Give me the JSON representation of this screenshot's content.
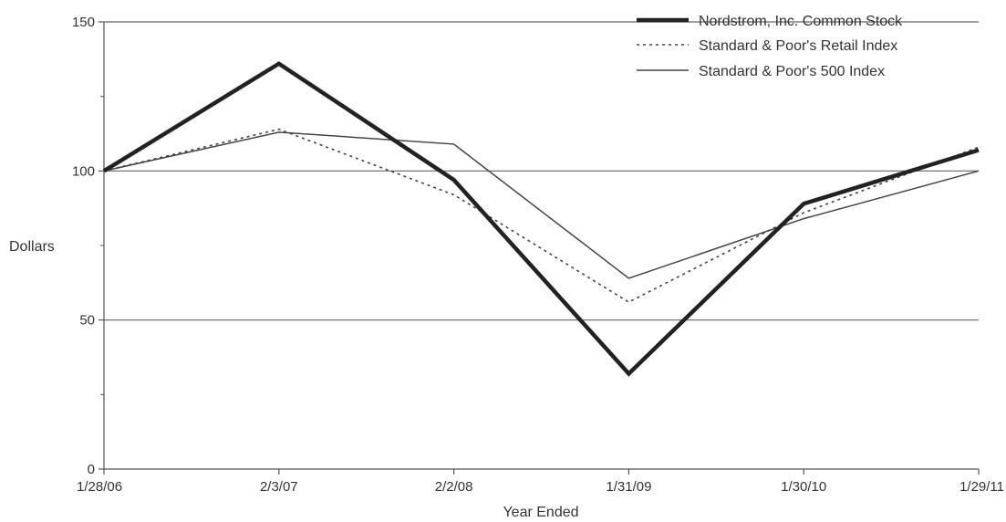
{
  "chart_data": {
    "type": "line",
    "categories": [
      "1/28/06",
      "2/3/07",
      "2/2/08",
      "1/31/09",
      "1/30/10",
      "1/29/11"
    ],
    "series": [
      {
        "name": "Nordstrom, Inc. Common Stock",
        "values": [
          100,
          136,
          97,
          32,
          89,
          107
        ],
        "color": "#222222",
        "style": "thick-solid"
      },
      {
        "name": "Standard & Poor's Retail Index",
        "values": [
          100,
          114,
          92,
          56,
          86,
          108
        ],
        "color": "#444444",
        "style": "dotted"
      },
      {
        "name": "Standard & Poor's 500 Index",
        "values": [
          100,
          113,
          109,
          64,
          84,
          100
        ],
        "color": "#444444",
        "style": "thin-solid"
      }
    ],
    "title": "",
    "xlabel": "Year Ended",
    "ylabel": "Dollars",
    "ylim": [
      0,
      150
    ],
    "yticks": [
      0,
      50,
      100,
      150
    ],
    "ytick_labels": [
      "0",
      "50",
      "100",
      "150"
    ],
    "minor_yticks": [
      25,
      75,
      125
    ],
    "grid": "horizontal at 50, 100, 150",
    "legend_placement": "top-right"
  }
}
